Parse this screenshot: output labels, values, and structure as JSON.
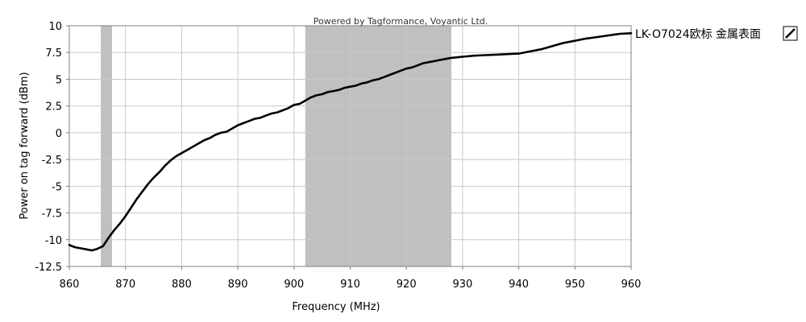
{
  "chart_data": {
    "type": "line",
    "watermark": "Powered by Tagformance, Voyantic Ltd.",
    "xlabel": "Frequency (MHz)",
    "ylabel": "Power on tag forward (dBm)",
    "xlim": [
      860,
      960
    ],
    "ylim": [
      -12.5,
      10
    ],
    "x_ticks": [
      "860",
      "870",
      "880",
      "890",
      "900",
      "910",
      "920",
      "930",
      "940",
      "950",
      "960"
    ],
    "y_ticks": [
      "10",
      "7.5",
      "5",
      "2.5",
      "0",
      "-2.5",
      "-5",
      "-7.5",
      "-10",
      "-12.5"
    ],
    "grid": true,
    "legend_position": "right",
    "shaded_bands": [
      {
        "from": 865.6,
        "to": 867.6,
        "color": "#c0c0c0"
      },
      {
        "from": 902,
        "to": 928,
        "color": "#c0c0c0"
      }
    ],
    "series": [
      {
        "name": "LK-O7024欧标 金属表面",
        "color": "#000000",
        "x": [
          860,
          861,
          862,
          863,
          864,
          865,
          866,
          866.5,
          867,
          868,
          869,
          870,
          871,
          872,
          873,
          874,
          875,
          876,
          877,
          878,
          879,
          880,
          881,
          882,
          883,
          884,
          885,
          886,
          887,
          888,
          889,
          890,
          891,
          892,
          893,
          894,
          895,
          896,
          897,
          898,
          899,
          900,
          901,
          902,
          903,
          904,
          905,
          906,
          907,
          908,
          909,
          910,
          911,
          912,
          913,
          914,
          915,
          916,
          917,
          918,
          919,
          920,
          921,
          922,
          923,
          924,
          925,
          926,
          927,
          928,
          929,
          930,
          932,
          934,
          936,
          938,
          940,
          942,
          944,
          946,
          948,
          950,
          952,
          954,
          956,
          958,
          960
        ],
        "y": [
          -10.5,
          -10.7,
          -10.8,
          -10.9,
          -11.0,
          -10.85,
          -10.6,
          -10.2,
          -9.8,
          -9.1,
          -8.5,
          -7.8,
          -7.0,
          -6.2,
          -5.5,
          -4.8,
          -4.2,
          -3.7,
          -3.1,
          -2.6,
          -2.2,
          -1.9,
          -1.6,
          -1.3,
          -1.0,
          -0.7,
          -0.5,
          -0.2,
          0.0,
          0.1,
          0.4,
          0.7,
          0.9,
          1.1,
          1.3,
          1.4,
          1.6,
          1.8,
          1.9,
          2.1,
          2.3,
          2.6,
          2.7,
          3.0,
          3.3,
          3.5,
          3.6,
          3.8,
          3.9,
          4.0,
          4.2,
          4.3,
          4.4,
          4.6,
          4.7,
          4.9,
          5.0,
          5.2,
          5.4,
          5.6,
          5.8,
          6.0,
          6.1,
          6.3,
          6.5,
          6.6,
          6.7,
          6.8,
          6.9,
          7.0,
          7.05,
          7.1,
          7.2,
          7.25,
          7.3,
          7.35,
          7.4,
          7.6,
          7.8,
          8.1,
          8.4,
          8.6,
          8.8,
          8.95,
          9.1,
          9.25,
          9.3
        ]
      }
    ]
  }
}
